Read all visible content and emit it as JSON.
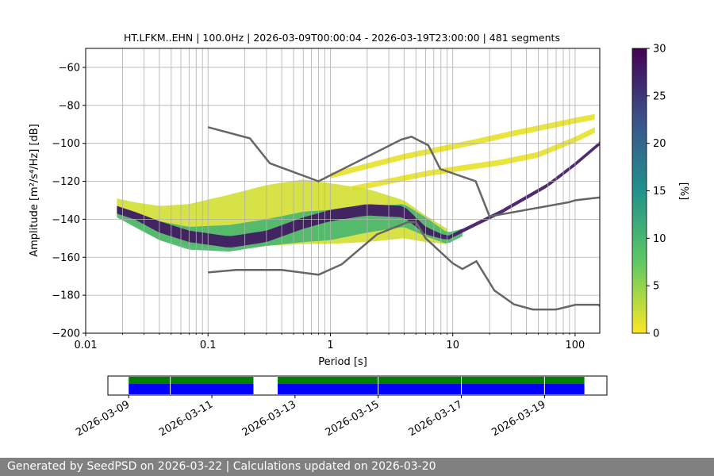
{
  "title": "HT.LFKM..EHN | 100.0Hz | 2026-03-09T00:00:04 - 2026-03-19T23:00:00 | 481 segments",
  "footer": "Generated by SeedPSD on 2026-03-22 | Calculations updated on 2026-03-20",
  "chart_data": [
    {
      "type": "heatmap",
      "title": "HT.LFKM..EHN | 100.0Hz | 2026-03-09T00:00:04 - 2026-03-19T23:00:00 | 481 segments",
      "xlabel": "Period [s]",
      "ylabel": "Amplitude [m²/s⁴/Hz] [dB]",
      "x_scale": "log",
      "xlim": [
        0.01,
        159
      ],
      "ylim": [
        -200,
        -50
      ],
      "x_ticks": [
        0.01,
        0.1,
        1,
        10,
        100
      ],
      "x_tick_labels": [
        "0.01",
        "0.1",
        "1",
        "10",
        "100"
      ],
      "y_ticks": [
        -200,
        -180,
        -160,
        -140,
        -120,
        -100,
        -80,
        -60
      ],
      "y_tick_labels": [
        "−200",
        "−180",
        "−160",
        "−140",
        "−120",
        "−100",
        "−80",
        "−60"
      ],
      "grid": true,
      "colorbar": {
        "label": "[%]",
        "min": 0,
        "max": 30,
        "ticks": [
          0,
          5,
          10,
          15,
          20,
          25,
          30
        ],
        "colormap": "viridis_r",
        "colors": [
          "#fde725",
          "#5ec962",
          "#21918c",
          "#3b528b",
          "#440154"
        ]
      },
      "density_bands": [
        {
          "period": [
            0.018,
            0.025,
            0.04,
            0.07,
            0.15,
            0.3,
            0.6,
            1.0,
            2.0,
            4.0,
            6.0,
            9.0,
            15.0,
            25.0,
            60.0,
            100.0,
            159.0
          ],
          "center": [
            -135,
            -138,
            -144,
            -149,
            -152,
            -149,
            -142,
            -138,
            -135,
            -136,
            -146,
            -150,
            -143,
            -136,
            -122,
            -111,
            -100
          ],
          "halfwidth": [
            2,
            2,
            3,
            3,
            3,
            3,
            3,
            3,
            3,
            3,
            2,
            1,
            1,
            1,
            1,
            1,
            1
          ],
          "percent": 28
        },
        {
          "period": [
            0.018,
            0.025,
            0.04,
            0.07,
            0.15,
            0.3,
            0.6,
            1.0,
            2.0,
            4.0,
            6.0,
            9.0,
            12.0
          ],
          "center": [
            -136,
            -140,
            -146,
            -150,
            -150,
            -147,
            -144,
            -143,
            -140,
            -138,
            -144,
            -150,
            -147
          ],
          "halfwidth": [
            3,
            4,
            5,
            6,
            7,
            7,
            8,
            8,
            7,
            6,
            5,
            3,
            2
          ],
          "percent": 10
        },
        {
          "period": [
            0.018,
            0.025,
            0.04,
            0.07,
            0.15,
            0.3,
            0.6,
            1.0,
            2.0,
            4.0,
            6.0,
            9.0
          ],
          "center": [
            -133,
            -137,
            -142,
            -143,
            -141,
            -138,
            -136,
            -137,
            -138,
            -140,
            -145,
            -149
          ],
          "halfwidth": [
            4,
            6,
            9,
            11,
            14,
            16,
            17,
            16,
            14,
            10,
            7,
            4
          ],
          "percent": 2
        },
        {
          "period": [
            1.0,
            2.0,
            4.0,
            8.0,
            16.0,
            30.0,
            60.0,
            100.0,
            145.0
          ],
          "center": [
            -117,
            -112,
            -107,
            -103,
            -99,
            -95,
            -91,
            -88,
            -86
          ],
          "halfwidth": [
            1.5,
            1.5,
            1.5,
            1.5,
            1.5,
            1.5,
            1.5,
            1.5,
            1.5
          ],
          "percent": 1
        },
        {
          "period": [
            1.5,
            3.0,
            6.0,
            12.0,
            25.0,
            50.0,
            100.0,
            145.0
          ],
          "center": [
            -124,
            -120,
            -116,
            -113,
            -110,
            -106,
            -98,
            -93
          ],
          "halfwidth": [
            1.5,
            1.5,
            1.5,
            1.5,
            1.5,
            1.5,
            1.5,
            1.5
          ],
          "percent": 1
        }
      ],
      "series": [
        {
          "name": "",
          "x": [
            0.1,
            0.22,
            0.32,
            0.8,
            3.8,
            4.6,
            6.3,
            7.9,
            15.4,
            20.0,
            89.0,
            100.0,
            159.0
          ],
          "y": [
            -91.5,
            -97.4,
            -110.5,
            -120.0,
            -98.0,
            -96.5,
            -101.0,
            -113.5,
            -120.0,
            -138.5,
            -131.0,
            -130.0,
            -128.5
          ]
        },
        {
          "name": "",
          "x": [
            0.1,
            0.17,
            0.4,
            0.8,
            1.24,
            2.4,
            4.3,
            5.0,
            6.0,
            10.0,
            12.0,
            15.6,
            21.9,
            31.6,
            45.0,
            70.0,
            101.0,
            154.0,
            159.0
          ],
          "y": [
            -168.0,
            -166.7,
            -166.7,
            -169.2,
            -163.7,
            -148.0,
            -141.5,
            -141.5,
            -150.0,
            -163.2,
            -166.2,
            -162.1,
            -177.5,
            -184.8,
            -187.5,
            -187.5,
            -185.0,
            -185.0,
            -185.5
          ]
        }
      ]
    },
    {
      "type": "timeline",
      "tick_labels": [
        "2026-03-09",
        "2026-03-11",
        "2026-03-13",
        "2026-03-15",
        "2026-03-17",
        "2026-03-19"
      ],
      "xlim": [
        "2026-03-08T12:00",
        "2026-03-20T12:00"
      ],
      "coverage": [
        {
          "start": "2026-03-09T00:00",
          "end": "2026-03-12T00:00"
        },
        {
          "start": "2026-03-12T14:00",
          "end": "2026-03-19T23:00"
        }
      ],
      "separators": [
        "2026-03-10T00:00",
        "2026-03-15T00:00",
        "2026-03-17T00:00",
        "2026-03-19T00:00"
      ],
      "colors": {
        "top": "#008000",
        "bottom": "#0000ff"
      }
    }
  ]
}
